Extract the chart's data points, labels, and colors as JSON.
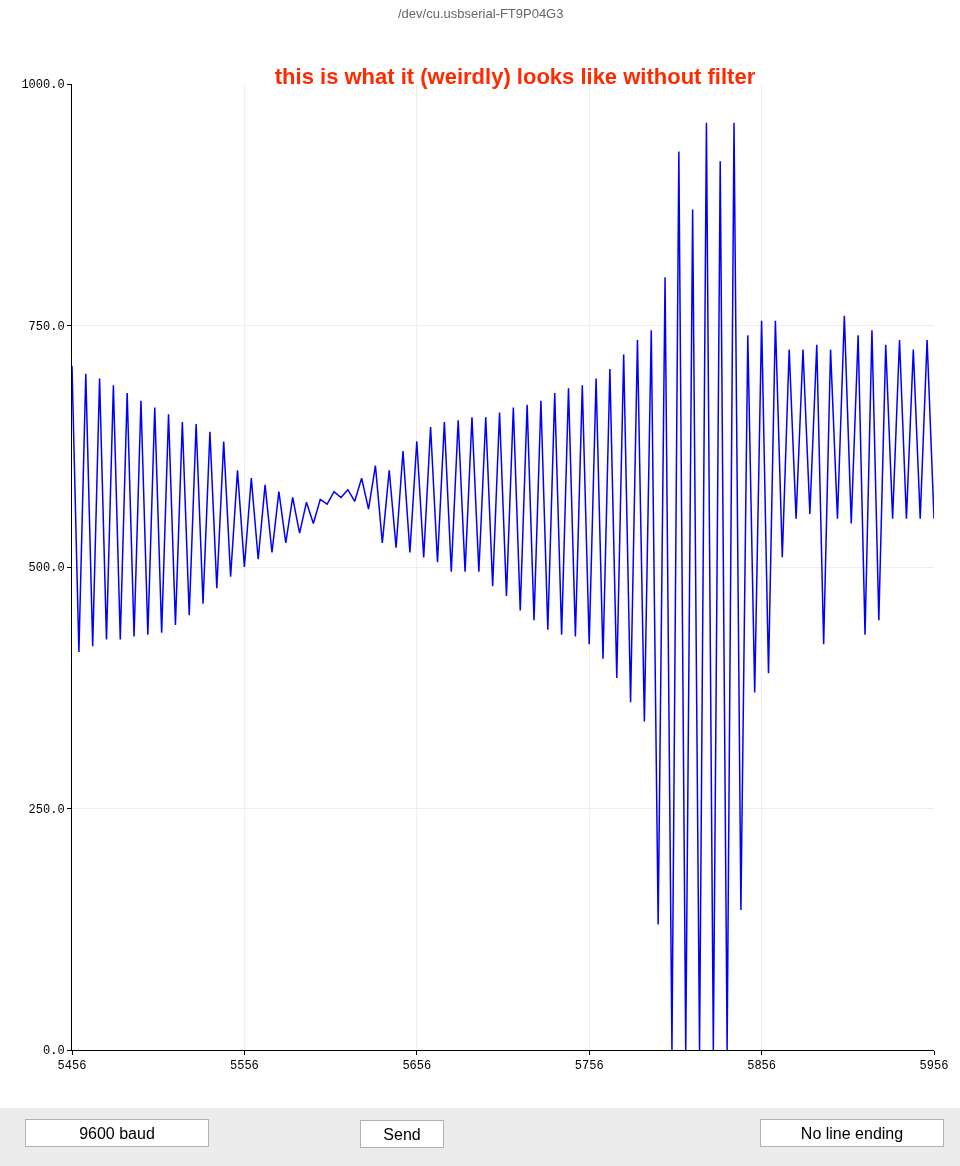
{
  "chart_data": {
    "type": "line",
    "title": "this is what it (weirdly) looks like without filter",
    "annotations": [
      "/dev/cu.usbserial-FT9P04G3",
      "9600 baud",
      "Send",
      "No line ending"
    ],
    "x": [
      5456,
      5460,
      5464,
      5468,
      5472,
      5476,
      5480,
      5484,
      5488,
      5492,
      5496,
      5500,
      5504,
      5508,
      5512,
      5516,
      5520,
      5524,
      5528,
      5532,
      5536,
      5540,
      5544,
      5548,
      5552,
      5556,
      5560,
      5564,
      5568,
      5572,
      5576,
      5580,
      5584,
      5588,
      5592,
      5596,
      5600,
      5604,
      5608,
      5612,
      5616,
      5620,
      5624,
      5628,
      5632,
      5636,
      5640,
      5644,
      5648,
      5652,
      5656,
      5660,
      5664,
      5668,
      5672,
      5676,
      5680,
      5684,
      5688,
      5692,
      5696,
      5700,
      5704,
      5708,
      5712,
      5716,
      5720,
      5724,
      5728,
      5732,
      5736,
      5740,
      5744,
      5748,
      5752,
      5756,
      5760,
      5764,
      5768,
      5772,
      5776,
      5780,
      5784,
      5788,
      5792,
      5796,
      5800,
      5804,
      5808,
      5812,
      5816,
      5820,
      5824,
      5828,
      5832,
      5836,
      5840,
      5844,
      5848,
      5852,
      5856,
      5860,
      5864,
      5868,
      5872,
      5876,
      5880,
      5884,
      5888,
      5892,
      5896,
      5900,
      5904,
      5908,
      5912,
      5916,
      5920,
      5924,
      5928,
      5932,
      5936,
      5940,
      5944,
      5948,
      5952,
      5956
    ],
    "series": [
      {
        "color": "#0000ff",
        "values": [
          708,
          412,
          700,
          418,
          695,
          425,
          688,
          425,
          680,
          428,
          672,
          430,
          665,
          432,
          658,
          440,
          650,
          450,
          648,
          462,
          640,
          478,
          630,
          490,
          600,
          500,
          592,
          508,
          585,
          515,
          578,
          525,
          572,
          535,
          567,
          545,
          570,
          565,
          578,
          572,
          580,
          568,
          592,
          560,
          605,
          525,
          600,
          520,
          620,
          515,
          630,
          510,
          645,
          505,
          650,
          495,
          652,
          495,
          655,
          495,
          655,
          480,
          660,
          470,
          665,
          455,
          668,
          445,
          672,
          435,
          680,
          430,
          685,
          428,
          688,
          420,
          695,
          405,
          705,
          385,
          720,
          360,
          735,
          340,
          745,
          130,
          800,
          0,
          930,
          0,
          870,
          0,
          960,
          0,
          920,
          0,
          960,
          145,
          740,
          370,
          755,
          390,
          755,
          510,
          725,
          550,
          725,
          555,
          730,
          420,
          725,
          550,
          760,
          545,
          740,
          430,
          745,
          445,
          730,
          550,
          735,
          550,
          725,
          550,
          735,
          550
        ]
      }
    ],
    "xlim": [
      5456,
      5956
    ],
    "ylim": [
      0,
      1000
    ],
    "xticks": [
      5456,
      5556,
      5656,
      5756,
      5856,
      5956
    ],
    "yticks": [
      {
        "value": 0,
        "label": "0.0"
      },
      {
        "value": 250,
        "label": "250.0"
      },
      {
        "value": 500,
        "label": "500.0"
      },
      {
        "value": 750,
        "label": "750.0"
      },
      {
        "value": 1000,
        "label": "1000.0"
      }
    ],
    "grid": true,
    "legend": false,
    "marker": "none",
    "line_style": "solid"
  }
}
